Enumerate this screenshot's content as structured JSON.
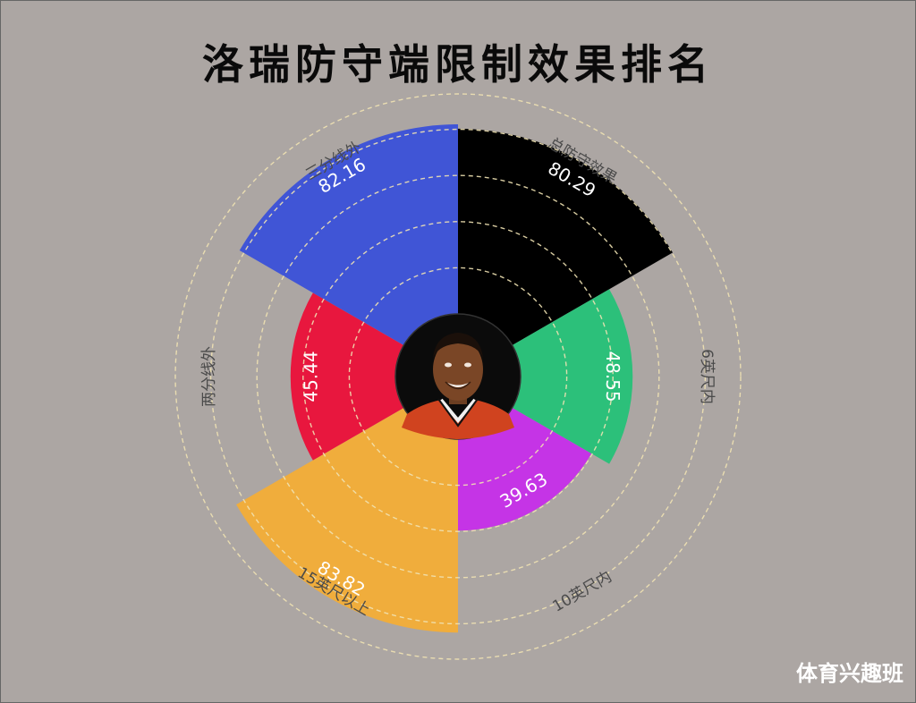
{
  "title": "洛瑞防守端限制效果排名",
  "watermark": "体育兴趣班",
  "chart_data": {
    "type": "polar-bar",
    "title": "洛瑞防守端限制效果排名",
    "rlim": [
      0,
      100
    ],
    "grid": true,
    "categories": [
      "总防守效果",
      "6英尺内",
      "10英尺内",
      "15英尺以上",
      "两分线外",
      "三分线外"
    ],
    "values": [
      80.29,
      48.55,
      39.63,
      83.82,
      45.44,
      82.16
    ],
    "colors": [
      "#000000",
      "#2cc07a",
      "#c534e6",
      "#f0ad3c",
      "#e8173e",
      "#4055d6"
    ],
    "value_labels": [
      "80.29",
      "48.55",
      "39.63",
      "83.82",
      "45.44",
      "82.16"
    ]
  },
  "center_image": "player-portrait"
}
